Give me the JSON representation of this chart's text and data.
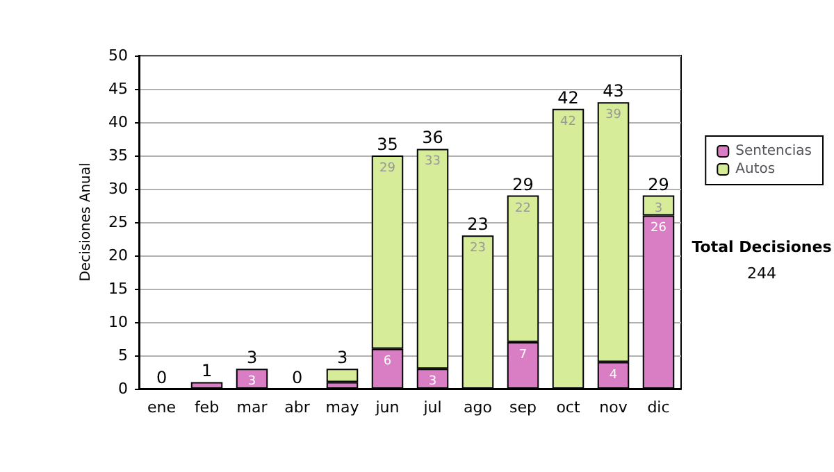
{
  "chart_data": {
    "type": "bar",
    "stacked": true,
    "ylabel": "Decisiones Anual",
    "categories": [
      "ene",
      "feb",
      "mar",
      "abr",
      "may",
      "jun",
      "jul",
      "ago",
      "sep",
      "oct",
      "nov",
      "dic"
    ],
    "series": [
      {
        "name": "Sentencias",
        "color": "#d97ec4",
        "values": [
          0,
          1,
          3,
          0,
          1,
          6,
          3,
          0,
          7,
          0,
          4,
          26
        ],
        "value_labels": [
          null,
          null,
          "3",
          null,
          null,
          "6",
          "3",
          null,
          "7",
          null,
          "4",
          "26"
        ]
      },
      {
        "name": "Autos",
        "color": "#d6ec98",
        "values": [
          0,
          0,
          0,
          0,
          2,
          29,
          33,
          23,
          22,
          42,
          39,
          3
        ],
        "value_labels": [
          null,
          null,
          null,
          null,
          null,
          "29",
          "33",
          "23",
          "22",
          "42",
          "39",
          "3"
        ]
      }
    ],
    "totals": [
      "0",
      "1",
      "3",
      "0",
      "3",
      "35",
      "36",
      "23",
      "29",
      "42",
      "43",
      "29"
    ],
    "ylim": [
      0,
      50
    ],
    "yticks": [
      0,
      5,
      10,
      15,
      20,
      25,
      30,
      35,
      40,
      45,
      50
    ],
    "grid": "y",
    "legend": "right",
    "annotations": [
      "Total Decisiones",
      "244"
    ]
  }
}
